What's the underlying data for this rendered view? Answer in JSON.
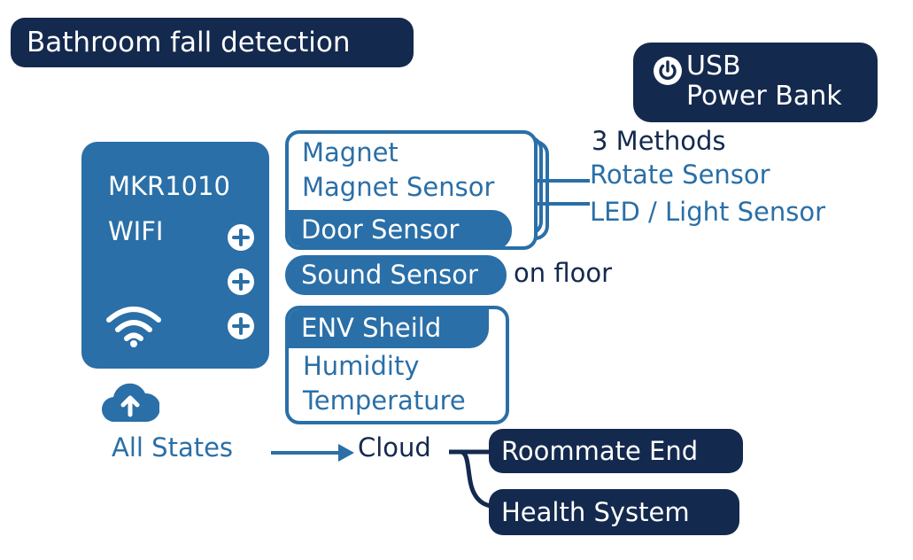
{
  "title": "Bathroom fall detection",
  "power": {
    "line1": "USB",
    "line2": "Power Bank",
    "icon": "power-icon"
  },
  "board": {
    "line1": "MKR1010",
    "line2": "WIFI",
    "icons": [
      "wifi-icon",
      "plus-icon"
    ]
  },
  "door": {
    "line1": "Magnet",
    "line2": "Magnet Sensor",
    "tab": "Door Sensor"
  },
  "methods": {
    "heading": "3 Methods",
    "item1": "Rotate Sensor",
    "item2": "LED / Light Sensor"
  },
  "sound": {
    "label": "Sound Sensor",
    "note": "on floor"
  },
  "env": {
    "tab": "ENV Sheild",
    "line1": "Humidity",
    "line2": "Temperature"
  },
  "flow": {
    "source": "All States",
    "cloud": "Cloud",
    "icon": "cloud-upload-icon"
  },
  "outputs": {
    "roommate": "Roommate End",
    "health": "Health System"
  },
  "colors": {
    "navy": "#14294e",
    "blue": "#2a6fa7",
    "white": "#ffffff"
  }
}
